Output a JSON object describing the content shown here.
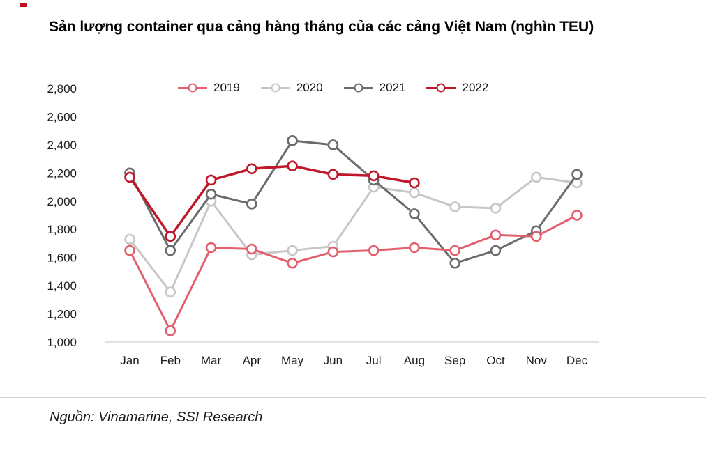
{
  "page": {
    "title": "Sản lượng container qua cảng hàng tháng của các cảng Việt Nam (nghìn TEU)",
    "source": "Nguồn: Vinamarine, SSI Research"
  },
  "chart_data": {
    "type": "line",
    "title": "Sản lượng container qua cảng hàng tháng của các cảng Việt Nam (nghìn TEU)",
    "xlabel": "",
    "ylabel": "",
    "categories": [
      "Jan",
      "Feb",
      "Mar",
      "Apr",
      "May",
      "Jun",
      "Jul",
      "Aug",
      "Sep",
      "Oct",
      "Nov",
      "Dec"
    ],
    "series": [
      {
        "name": "2019",
        "color": "#e2606c",
        "values": [
          1650,
          1080,
          1670,
          1660,
          1560,
          1640,
          1650,
          1670,
          1650,
          1760,
          1750,
          1900
        ]
      },
      {
        "name": "2020",
        "color": "#c7c7c7",
        "values": [
          1730,
          1355,
          2000,
          1620,
          1650,
          1680,
          2100,
          2060,
          1960,
          1950,
          2170,
          2130
        ]
      },
      {
        "name": "2021",
        "color": "#6b6b6e",
        "values": [
          2200,
          1650,
          2050,
          1980,
          2430,
          2400,
          2150,
          1910,
          1560,
          1650,
          1790,
          2190
        ]
      },
      {
        "name": "2022",
        "color": "#c0182b",
        "values": [
          2170,
          1750,
          2150,
          2230,
          2250,
          2190,
          2180,
          2130
        ]
      }
    ],
    "ylim": [
      1000,
      2800
    ],
    "ytick_step": 200,
    "legend_position": "top",
    "grid": false,
    "marker": "open-circle",
    "baseline_color": "#d8d8d8"
  }
}
